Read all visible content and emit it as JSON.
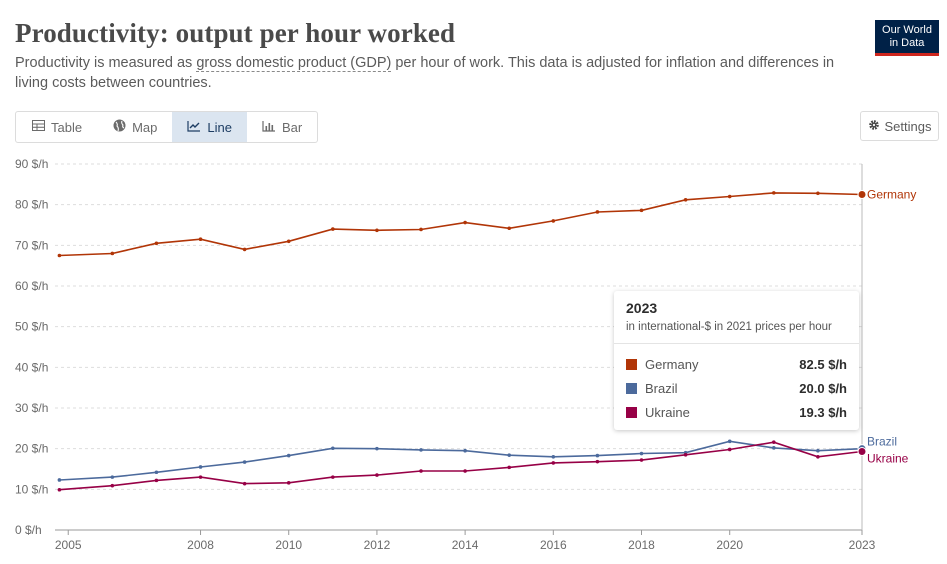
{
  "header": {
    "title": "Productivity: output per hour worked",
    "subtitle_pre": "Productivity is measured as ",
    "subtitle_link": "gross domestic product (GDP)",
    "subtitle_post": " per hour of work. This data is adjusted for inflation and differences in living costs between countries.",
    "logo_line1": "Our World",
    "logo_line2": "in Data"
  },
  "tabs": [
    {
      "label": "Table",
      "icon": "table-icon",
      "active": false
    },
    {
      "label": "Map",
      "icon": "globe-icon",
      "active": false
    },
    {
      "label": "Line",
      "icon": "line-chart-icon",
      "active": true
    },
    {
      "label": "Bar",
      "icon": "bar-chart-icon",
      "active": false
    }
  ],
  "settings_label": "Settings",
  "tooltip": {
    "year": "2023",
    "unit": "in international-$ in 2021 prices per hour",
    "rows": [
      {
        "name": "Germany",
        "value": "82.5 $/h",
        "color": "#b13507"
      },
      {
        "name": "Brazil",
        "value": "20.0 $/h",
        "color": "#4c6a9c"
      },
      {
        "name": "Ukraine",
        "value": "19.3 $/h",
        "color": "#970046"
      }
    ]
  },
  "chart_data": {
    "type": "line",
    "title": "Productivity: output per hour worked",
    "ylabel": "$/h",
    "ylim": [
      0,
      90
    ],
    "xlim": [
      2004.7,
      2023
    ],
    "yticks": [
      0,
      10,
      20,
      30,
      40,
      50,
      60,
      70,
      80,
      90
    ],
    "ytick_labels": [
      "0 $/h",
      "10 $/h",
      "20 $/h",
      "30 $/h",
      "40 $/h",
      "50 $/h",
      "60 $/h",
      "70 $/h",
      "80 $/h",
      "90 $/h"
    ],
    "xticks": [
      2005,
      2008,
      2010,
      2012,
      2014,
      2016,
      2018,
      2020,
      2023
    ],
    "xtick_labels": [
      "2005",
      "2008",
      "2010",
      "2012",
      "2014",
      "2016",
      "2018",
      "2020",
      "2023"
    ],
    "grid": true,
    "series": [
      {
        "name": "Germany",
        "color": "#b13507",
        "x": [
          2004.8,
          2006,
          2007,
          2008,
          2009,
          2010,
          2011,
          2012,
          2013,
          2014,
          2015,
          2016,
          2017,
          2018,
          2019,
          2020,
          2021,
          2022,
          2023
        ],
        "y": [
          67.5,
          68.0,
          70.5,
          71.5,
          69.0,
          71.0,
          74.0,
          73.7,
          73.9,
          75.6,
          74.2,
          76.0,
          78.2,
          78.6,
          81.2,
          82.0,
          82.9,
          82.8,
          82.5
        ]
      },
      {
        "name": "Brazil",
        "color": "#4c6a9c",
        "x": [
          2004.8,
          2006,
          2007,
          2008,
          2009,
          2010,
          2011,
          2012,
          2013,
          2014,
          2015,
          2016,
          2017,
          2018,
          2019,
          2020,
          2021,
          2022,
          2023
        ],
        "y": [
          12.3,
          13.0,
          14.2,
          15.5,
          16.7,
          18.3,
          20.1,
          20.0,
          19.7,
          19.5,
          18.4,
          18.0,
          18.3,
          18.8,
          19.0,
          21.8,
          20.2,
          19.5,
          20.0
        ]
      },
      {
        "name": "Ukraine",
        "color": "#970046",
        "x": [
          2004.8,
          2006,
          2007,
          2008,
          2009,
          2010,
          2011,
          2012,
          2013,
          2014,
          2015,
          2016,
          2017,
          2018,
          2019,
          2020,
          2021,
          2022,
          2023
        ],
        "y": [
          9.9,
          10.9,
          12.2,
          13.0,
          11.4,
          11.6,
          13.0,
          13.5,
          14.5,
          14.5,
          15.4,
          16.5,
          16.8,
          17.2,
          18.5,
          19.8,
          21.6,
          18.0,
          19.3
        ]
      }
    ]
  }
}
